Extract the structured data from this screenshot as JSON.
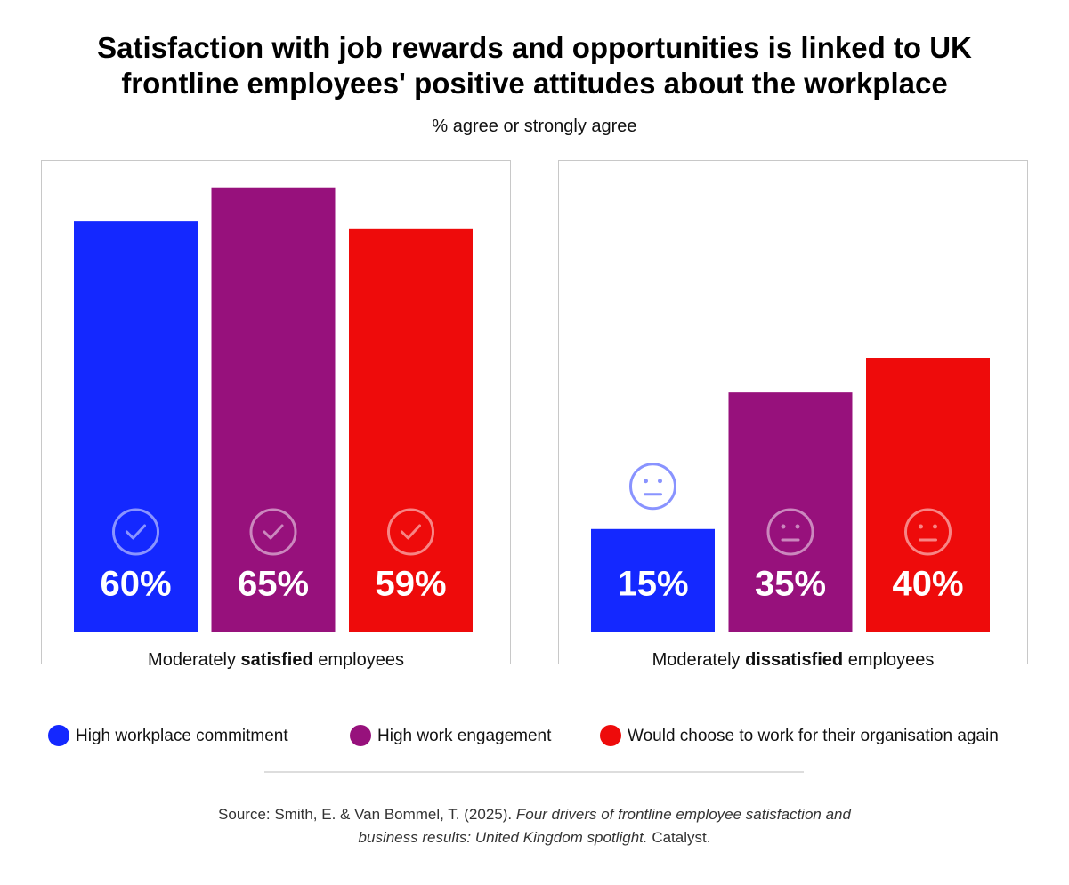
{
  "chart_data": {
    "type": "bar",
    "title": "Satisfaction with job rewards and opportunities is linked to UK frontline employees' positive attitudes about the workplace",
    "subtitle": "% agree or strongly agree",
    "categories": [
      [
        "Moderately",
        "satisfied",
        "employees"
      ],
      [
        "Moderately",
        "dissatisfied",
        "employees"
      ]
    ],
    "series": [
      {
        "name": "High workplace commitment",
        "color": "#1428ff",
        "values": [
          60,
          15
        ],
        "value_labels": [
          "60%",
          "15%"
        ]
      },
      {
        "name": "High work engagement",
        "color": "#97117c",
        "values": [
          65,
          35
        ],
        "value_labels": [
          "65%",
          "35%"
        ]
      },
      {
        "name": "Would choose to work for their organisation again",
        "color": "#ee0b0b",
        "values": [
          59,
          40
        ],
        "value_labels": [
          "59%",
          "40%"
        ]
      }
    ],
    "ylim": [
      0,
      69
    ],
    "source": [
      "Source: Smith, E. & Van Bommel, T. (2025).",
      "Four drivers of frontline employee satisfaction and business results: United Kingdom spotlight.",
      "Catalyst."
    ]
  }
}
